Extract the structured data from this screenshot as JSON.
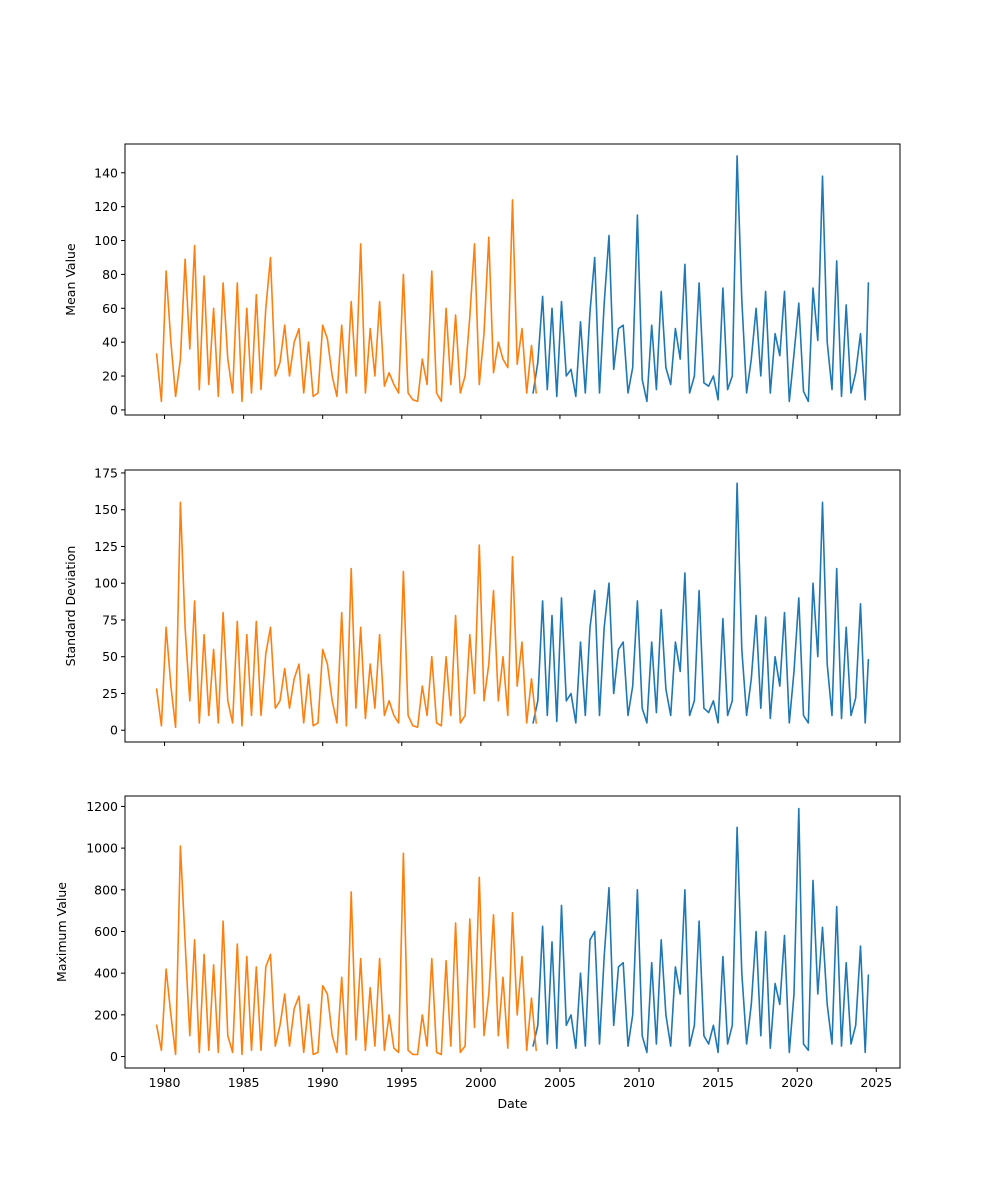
{
  "chart_data": [
    {
      "type": "line",
      "ylabel": "Mean Value",
      "xlabel": "",
      "xlim": [
        1977.5,
        2026.5
      ],
      "ylim": [
        -3,
        157
      ],
      "xticks": [
        1980,
        1985,
        1990,
        1995,
        2000,
        2005,
        2010,
        2015,
        2020,
        2025
      ],
      "xtick_labels_visible": false,
      "yticks": [
        0,
        20,
        40,
        60,
        80,
        100,
        120,
        140
      ],
      "ytick_labels": [
        "0",
        "20",
        "40",
        "60",
        "80",
        "100",
        "120",
        "140"
      ],
      "series": [
        {
          "color": "#1f77b4",
          "x": [
            2003.3,
            2003.6,
            2003.9,
            2004.2,
            2004.5,
            2004.8,
            2005.1,
            2005.4,
            2005.7,
            2006.0,
            2006.3,
            2006.6,
            2006.9,
            2007.2,
            2007.5,
            2007.8,
            2008.1,
            2008.4,
            2008.7,
            2009.0,
            2009.3,
            2009.6,
            2009.9,
            2010.2,
            2010.5,
            2010.8,
            2011.1,
            2011.4,
            2011.7,
            2012.0,
            2012.3,
            2012.6,
            2012.9,
            2013.2,
            2013.5,
            2013.8,
            2014.1,
            2014.4,
            2014.7,
            2015.0,
            2015.3,
            2015.6,
            2015.9,
            2016.2,
            2016.5,
            2016.8,
            2017.1,
            2017.4,
            2017.7,
            2018.0,
            2018.3,
            2018.6,
            2018.9,
            2019.2,
            2019.5,
            2019.8,
            2020.1,
            2020.4,
            2020.7,
            2021.0,
            2021.3,
            2021.6,
            2021.9,
            2022.2,
            2022.5,
            2022.8,
            2023.1,
            2023.4,
            2023.7,
            2024.0,
            2024.3,
            2024.5
          ],
          "y": [
            10,
            28,
            67,
            12,
            60,
            8,
            64,
            20,
            24,
            8,
            52,
            10,
            58,
            90,
            10,
            63,
            103,
            24,
            48,
            50,
            10,
            25,
            115,
            18,
            5,
            50,
            12,
            70,
            25,
            15,
            48,
            30,
            86,
            10,
            20,
            75,
            16,
            14,
            20,
            6,
            72,
            12,
            20,
            150,
            65,
            10,
            30,
            60,
            20,
            70,
            10,
            45,
            32,
            70,
            5,
            33,
            63,
            11,
            5,
            72,
            41,
            138,
            40,
            12,
            88,
            8,
            62,
            10,
            22,
            45,
            6,
            75
          ]
        },
        {
          "color": "#ff7f0e",
          "x": [
            1979.5,
            1979.8,
            1980.1,
            1980.4,
            1980.7,
            1981.0,
            1981.3,
            1981.6,
            1981.9,
            1982.2,
            1982.5,
            1982.8,
            1983.1,
            1983.4,
            1983.7,
            1984.0,
            1984.3,
            1984.6,
            1984.9,
            1985.2,
            1985.5,
            1985.8,
            1986.1,
            1986.4,
            1986.7,
            1987.0,
            1987.3,
            1987.6,
            1987.9,
            1988.2,
            1988.5,
            1988.8,
            1989.1,
            1989.4,
            1989.7,
            1990.0,
            1990.3,
            1990.6,
            1990.9,
            1991.2,
            1991.5,
            1991.8,
            1992.1,
            1992.4,
            1992.7,
            1993.0,
            1993.3,
            1993.6,
            1993.9,
            1994.2,
            1994.5,
            1994.8,
            1995.1,
            1995.4,
            1995.7,
            1996.0,
            1996.3,
            1996.6,
            1996.9,
            1997.2,
            1997.5,
            1997.8,
            1998.1,
            1998.4,
            1998.7,
            1999.0,
            1999.3,
            1999.6,
            1999.9,
            2000.2,
            2000.5,
            2000.8,
            2001.1,
            2001.4,
            2001.7,
            2002.0,
            2002.3,
            2002.6,
            2002.9,
            2003.2,
            2003.5
          ],
          "y": [
            33,
            5,
            82,
            40,
            8,
            30,
            89,
            36,
            97,
            12,
            79,
            15,
            60,
            8,
            75,
            30,
            10,
            75,
            5,
            60,
            10,
            68,
            12,
            60,
            90,
            20,
            28,
            50,
            20,
            40,
            48,
            10,
            40,
            8,
            10,
            50,
            42,
            20,
            8,
            50,
            10,
            64,
            20,
            98,
            10,
            48,
            20,
            64,
            14,
            22,
            15,
            10,
            80,
            10,
            6,
            5,
            30,
            15,
            82,
            10,
            5,
            60,
            15,
            56,
            10,
            20,
            55,
            98,
            15,
            45,
            102,
            22,
            40,
            30,
            25,
            124,
            27,
            48,
            10,
            38,
            10
          ]
        }
      ]
    },
    {
      "type": "line",
      "ylabel": "Standard Deviation",
      "xlabel": "",
      "xlim": [
        1977.5,
        2026.5
      ],
      "ylim": [
        -8,
        177
      ],
      "xticks": [
        1980,
        1985,
        1990,
        1995,
        2000,
        2005,
        2010,
        2015,
        2020,
        2025
      ],
      "xtick_labels_visible": false,
      "yticks": [
        0,
        25,
        50,
        75,
        100,
        125,
        150,
        175
      ],
      "ytick_labels": [
        "0",
        "25",
        "50",
        "75",
        "100",
        "125",
        "150",
        "175"
      ],
      "series": [
        {
          "color": "#1f77b4",
          "x": [
            2003.3,
            2003.6,
            2003.9,
            2004.2,
            2004.5,
            2004.8,
            2005.1,
            2005.4,
            2005.7,
            2006.0,
            2006.3,
            2006.6,
            2006.9,
            2007.2,
            2007.5,
            2007.8,
            2008.1,
            2008.4,
            2008.7,
            2009.0,
            2009.3,
            2009.6,
            2009.9,
            2010.2,
            2010.5,
            2010.8,
            2011.1,
            2011.4,
            2011.7,
            2012.0,
            2012.3,
            2012.6,
            2012.9,
            2013.2,
            2013.5,
            2013.8,
            2014.1,
            2014.4,
            2014.7,
            2015.0,
            2015.3,
            2015.6,
            2015.9,
            2016.2,
            2016.5,
            2016.8,
            2017.1,
            2017.4,
            2017.7,
            2018.0,
            2018.3,
            2018.6,
            2018.9,
            2019.2,
            2019.5,
            2019.8,
            2020.1,
            2020.4,
            2020.7,
            2021.0,
            2021.3,
            2021.6,
            2021.9,
            2022.2,
            2022.5,
            2022.8,
            2023.1,
            2023.4,
            2023.7,
            2024.0,
            2024.3,
            2024.5
          ],
          "y": [
            5,
            20,
            88,
            10,
            78,
            6,
            90,
            20,
            25,
            5,
            60,
            10,
            70,
            95,
            10,
            70,
            100,
            25,
            55,
            60,
            10,
            30,
            88,
            15,
            5,
            60,
            12,
            82,
            28,
            10,
            60,
            40,
            107,
            10,
            20,
            95,
            15,
            12,
            20,
            5,
            76,
            10,
            20,
            168,
            55,
            10,
            35,
            78,
            15,
            77,
            8,
            50,
            30,
            80,
            5,
            40,
            90,
            10,
            5,
            100,
            50,
            155,
            45,
            10,
            110,
            8,
            70,
            10,
            22,
            86,
            5,
            48
          ]
        },
        {
          "color": "#ff7f0e",
          "x": [
            1979.5,
            1979.8,
            1980.1,
            1980.4,
            1980.7,
            1981.0,
            1981.3,
            1981.6,
            1981.9,
            1982.2,
            1982.5,
            1982.8,
            1983.1,
            1983.4,
            1983.7,
            1984.0,
            1984.3,
            1984.6,
            1984.9,
            1985.2,
            1985.5,
            1985.8,
            1986.1,
            1986.4,
            1986.7,
            1987.0,
            1987.3,
            1987.6,
            1987.9,
            1988.2,
            1988.5,
            1988.8,
            1989.1,
            1989.4,
            1989.7,
            1990.0,
            1990.3,
            1990.6,
            1990.9,
            1991.2,
            1991.5,
            1991.8,
            1992.1,
            1992.4,
            1992.7,
            1993.0,
            1993.3,
            1993.6,
            1993.9,
            1994.2,
            1994.5,
            1994.8,
            1995.1,
            1995.4,
            1995.7,
            1996.0,
            1996.3,
            1996.6,
            1996.9,
            1997.2,
            1997.5,
            1997.8,
            1998.1,
            1998.4,
            1998.7,
            1999.0,
            1999.3,
            1999.6,
            1999.9,
            2000.2,
            2000.5,
            2000.8,
            2001.1,
            2001.4,
            2001.7,
            2002.0,
            2002.3,
            2002.6,
            2002.9,
            2003.2,
            2003.5
          ],
          "y": [
            28,
            3,
            70,
            30,
            2,
            155,
            70,
            20,
            88,
            5,
            65,
            10,
            55,
            5,
            80,
            20,
            5,
            74,
            3,
            65,
            10,
            74,
            10,
            52,
            70,
            15,
            20,
            42,
            15,
            35,
            45,
            5,
            38,
            3,
            5,
            55,
            45,
            20,
            5,
            80,
            3,
            110,
            15,
            70,
            8,
            45,
            15,
            65,
            10,
            20,
            10,
            5,
            108,
            10,
            3,
            2,
            30,
            10,
            50,
            5,
            3,
            50,
            10,
            78,
            5,
            10,
            65,
            25,
            126,
            20,
            45,
            95,
            20,
            50,
            10,
            118,
            30,
            60,
            5,
            35,
            5
          ]
        }
      ]
    },
    {
      "type": "line",
      "ylabel": "Maximum Value",
      "xlabel": "Date",
      "xlim": [
        1977.5,
        2026.5
      ],
      "ylim": [
        -55,
        1250
      ],
      "xticks": [
        1980,
        1985,
        1990,
        1995,
        2000,
        2005,
        2010,
        2015,
        2020,
        2025
      ],
      "xtick_labels": [
        "1980",
        "1985",
        "1990",
        "1995",
        "2000",
        "2005",
        "2010",
        "2015",
        "2020",
        "2025"
      ],
      "yticks": [
        0,
        200,
        400,
        600,
        800,
        1000,
        1200
      ],
      "ytick_labels": [
        "0",
        "200",
        "400",
        "600",
        "800",
        "1000",
        "1200"
      ],
      "series": [
        {
          "color": "#1f77b4",
          "x": [
            2003.3,
            2003.6,
            2003.9,
            2004.2,
            2004.5,
            2004.8,
            2005.1,
            2005.4,
            2005.7,
            2006.0,
            2006.3,
            2006.6,
            2006.9,
            2007.2,
            2007.5,
            2007.8,
            2008.1,
            2008.4,
            2008.7,
            2009.0,
            2009.3,
            2009.6,
            2009.9,
            2010.2,
            2010.5,
            2010.8,
            2011.1,
            2011.4,
            2011.7,
            2012.0,
            2012.3,
            2012.6,
            2012.9,
            2013.2,
            2013.5,
            2013.8,
            2014.1,
            2014.4,
            2014.7,
            2015.0,
            2015.3,
            2015.6,
            2015.9,
            2016.2,
            2016.5,
            2016.8,
            2017.1,
            2017.4,
            2017.7,
            2018.0,
            2018.3,
            2018.6,
            2018.9,
            2019.2,
            2019.5,
            2019.8,
            2020.1,
            2020.4,
            2020.7,
            2021.0,
            2021.3,
            2021.6,
            2021.9,
            2022.2,
            2022.5,
            2022.8,
            2023.1,
            2023.4,
            2023.7,
            2024.0,
            2024.3,
            2024.5
          ],
          "y": [
            50,
            150,
            625,
            60,
            550,
            40,
            725,
            150,
            200,
            40,
            400,
            50,
            560,
            600,
            60,
            480,
            810,
            150,
            430,
            450,
            50,
            200,
            800,
            100,
            20,
            450,
            60,
            560,
            200,
            50,
            430,
            300,
            800,
            50,
            150,
            650,
            100,
            60,
            150,
            20,
            480,
            60,
            150,
            1100,
            400,
            60,
            250,
            600,
            100,
            600,
            40,
            350,
            250,
            580,
            20,
            300,
            1190,
            60,
            30,
            845,
            300,
            620,
            250,
            60,
            720,
            50,
            450,
            60,
            150,
            530,
            20,
            390
          ]
        },
        {
          "color": "#ff7f0e",
          "x": [
            1979.5,
            1979.8,
            1980.1,
            1980.4,
            1980.7,
            1981.0,
            1981.3,
            1981.6,
            1981.9,
            1982.2,
            1982.5,
            1982.8,
            1983.1,
            1983.4,
            1983.7,
            1984.0,
            1984.3,
            1984.6,
            1984.9,
            1985.2,
            1985.5,
            1985.8,
            1986.1,
            1986.4,
            1986.7,
            1987.0,
            1987.3,
            1987.6,
            1987.9,
            1988.2,
            1988.5,
            1988.8,
            1989.1,
            1989.4,
            1989.7,
            1990.0,
            1990.3,
            1990.6,
            1990.9,
            1991.2,
            1991.5,
            1991.8,
            1992.1,
            1992.4,
            1992.7,
            1993.0,
            1993.3,
            1993.6,
            1993.9,
            1994.2,
            1994.5,
            1994.8,
            1995.1,
            1995.4,
            1995.7,
            1996.0,
            1996.3,
            1996.6,
            1996.9,
            1997.2,
            1997.5,
            1997.8,
            1998.1,
            1998.4,
            1998.7,
            1999.0,
            1999.3,
            1999.6,
            1999.9,
            2000.2,
            2000.5,
            2000.8,
            2001.1,
            2001.4,
            2001.7,
            2002.0,
            2002.3,
            2002.6,
            2002.9,
            2003.2,
            2003.5
          ],
          "y": [
            150,
            30,
            420,
            200,
            10,
            1010,
            550,
            100,
            560,
            20,
            490,
            30,
            440,
            20,
            650,
            100,
            20,
            540,
            10,
            480,
            30,
            430,
            30,
            430,
            490,
            50,
            150,
            300,
            50,
            230,
            290,
            20,
            250,
            10,
            20,
            340,
            300,
            100,
            20,
            380,
            10,
            790,
            80,
            470,
            30,
            330,
            50,
            470,
            30,
            200,
            40,
            20,
            975,
            30,
            10,
            10,
            200,
            50,
            470,
            20,
            10,
            460,
            50,
            640,
            20,
            50,
            660,
            140,
            860,
            100,
            300,
            680,
            100,
            380,
            40,
            690,
            200,
            480,
            30,
            280,
            30
          ]
        }
      ]
    }
  ]
}
